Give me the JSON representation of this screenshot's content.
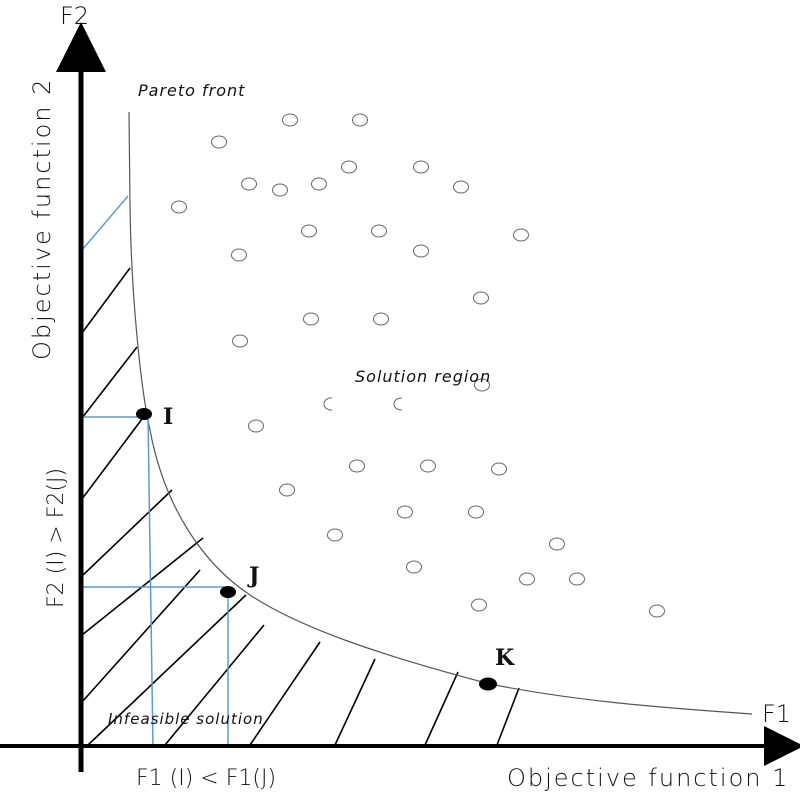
{
  "axes": {
    "x_end_label": "F1",
    "y_end_label": "F2",
    "x_title": "Objective function 1",
    "y_title": "Objective function 2"
  },
  "labels": {
    "pareto_front": "Pareto front",
    "solution_region": "Solution region",
    "infeasible": "Infeasible solution",
    "f1_comparison": "F1 (I) < F1(J)",
    "f2_comparison": "F2 (I) > F2(J)"
  },
  "points": [
    {
      "name": "I"
    },
    {
      "name": "J"
    },
    {
      "name": "K"
    }
  ],
  "colors": {
    "axis": "#000000",
    "curve": "#555555",
    "projection": "#5b9bd5",
    "marker": "#000000"
  }
}
